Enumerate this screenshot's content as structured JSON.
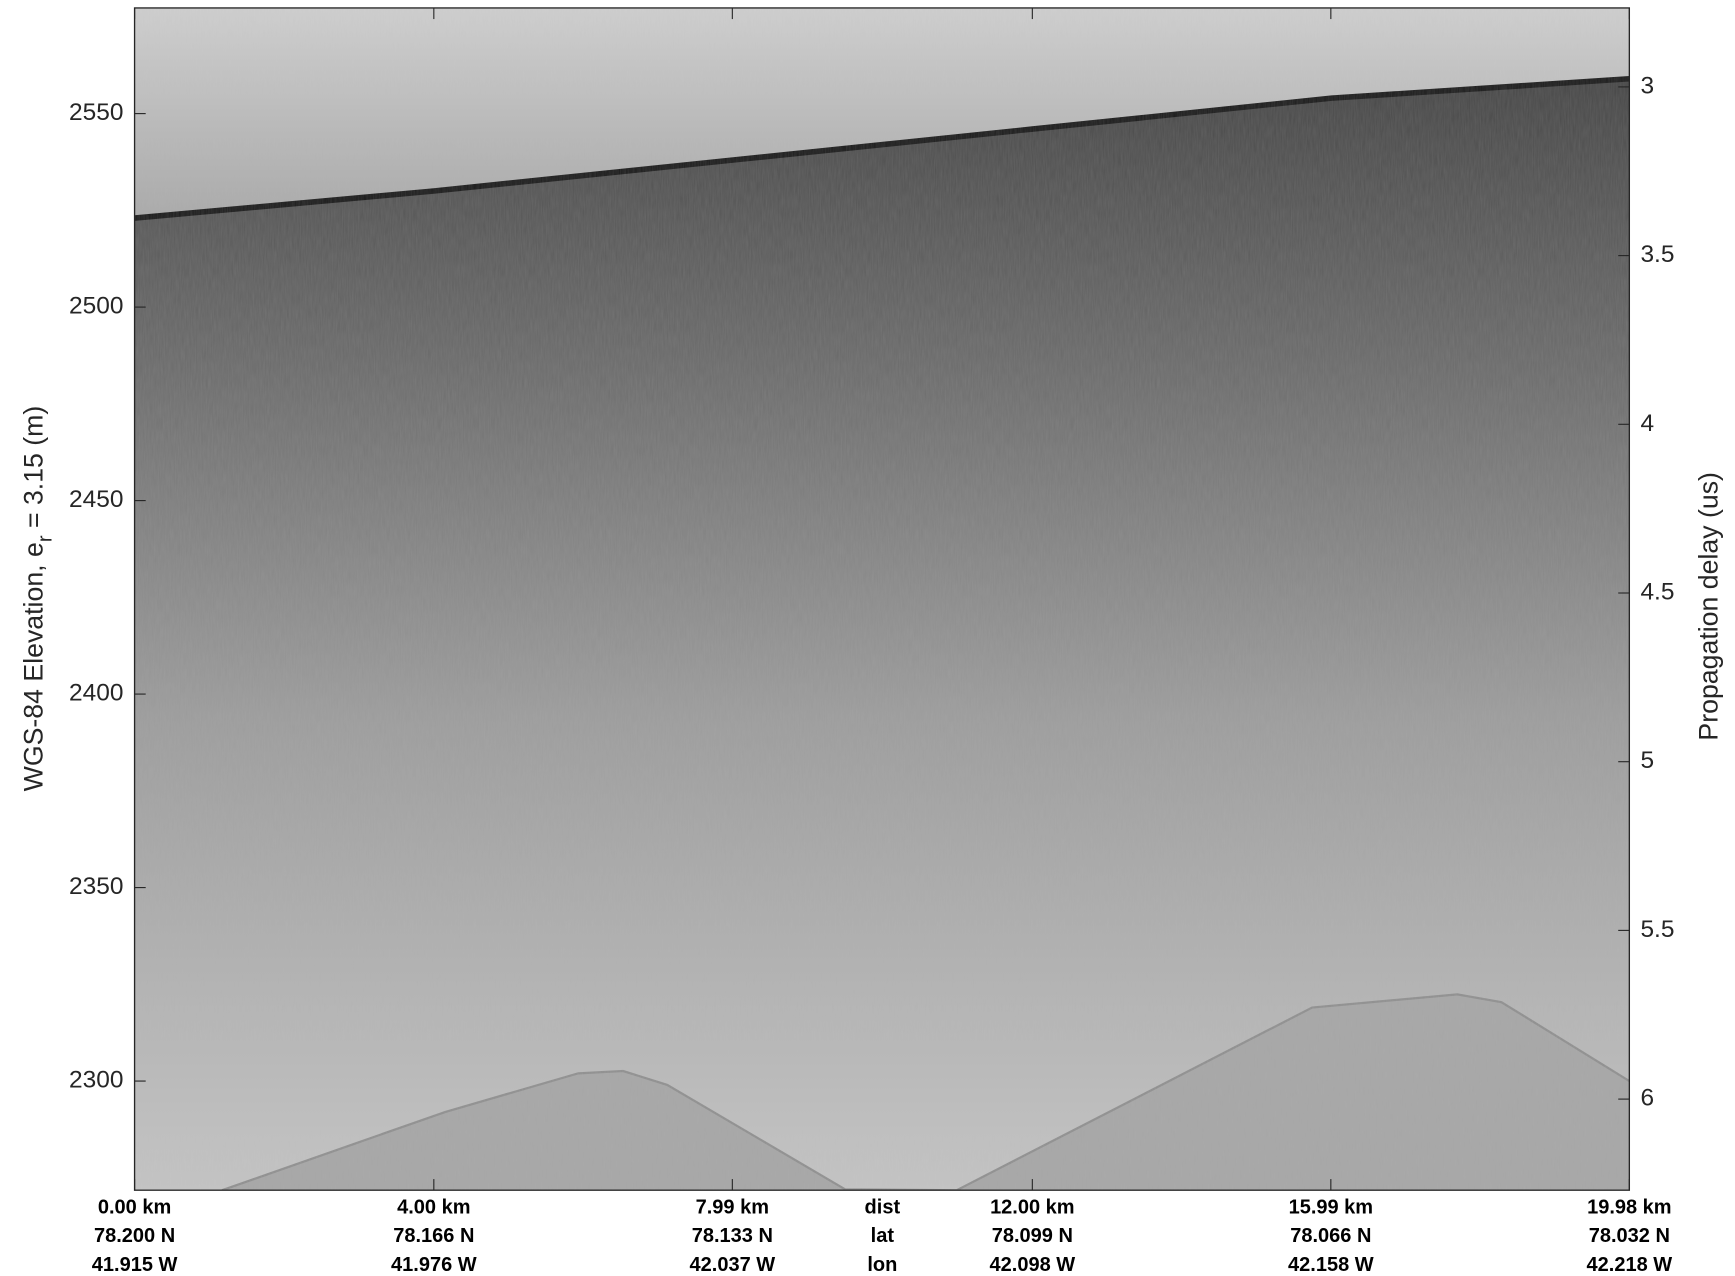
{
  "chart_data": {
    "type": "echogram",
    "ylabel": "WGS-84 Elevation, e",
    "ylabel_sub": "r",
    "ylabel_rest": " = 3.15 (m)",
    "y2label": "Propagation delay (us)",
    "xlim": [
      0,
      19.98
    ],
    "xticks": [
      {
        "value": 0,
        "label": "0.00 km"
      },
      {
        "value": 4.0,
        "label": "4.00 km"
      },
      {
        "value": 7.99,
        "label": "7.99 km"
      },
      {
        "value": 12.0,
        "label": "12.00 km"
      },
      {
        "value": 15.99,
        "label": "15.99 km"
      },
      {
        "value": 19.98,
        "label": "19.98 km"
      }
    ],
    "lat_labels": [
      "78.200 N",
      "78.166 N",
      "78.133 N",
      "78.099 N",
      "78.066 N",
      "78.032 N"
    ],
    "lon_labels": [
      "41.915 W",
      "41.976 W",
      "42.037 W",
      "42.098 W",
      "42.158 W",
      "42.218 W"
    ],
    "row_headers": [
      "dist",
      "lat",
      "lon"
    ],
    "ylim": [
      2271.8,
      2577.3
    ],
    "yticks": [
      2300,
      2350,
      2400,
      2450,
      2500,
      2550
    ],
    "y2lim": [
      6.27,
      2.766
    ],
    "y2ticks": [
      3,
      3.5,
      4,
      4.5,
      5,
      5.5,
      6
    ],
    "surface": {
      "x": [
        0,
        4,
        8,
        12,
        16,
        19.98
      ],
      "values": [
        2523,
        2530,
        2538,
        2546,
        2554,
        2559
      ]
    },
    "bed": {
      "x": [
        1.17,
        4.15,
        5.93,
        6.53,
        7.12,
        9.5,
        10.99,
        15.74,
        17.68,
        18.27,
        19.98
      ],
      "values": [
        2271.8,
        2292,
        2302,
        2302.6,
        2299,
        2272,
        2271.8,
        2319,
        2322.4,
        2320.4,
        2300
      ]
    }
  }
}
